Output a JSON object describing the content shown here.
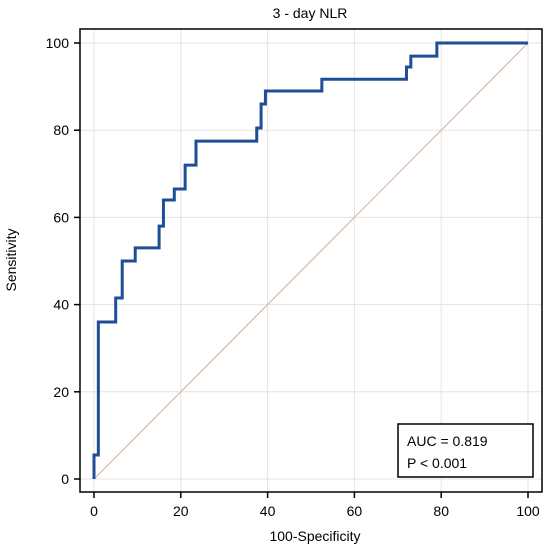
{
  "chart_data": {
    "type": "line",
    "title": "3 - day NLR",
    "xlabel": "100-Specificity",
    "ylabel": "Sensitivity",
    "xlim": [
      0,
      100
    ],
    "ylim": [
      0,
      100
    ],
    "xticks": [
      0,
      20,
      40,
      60,
      80,
      100
    ],
    "yticks": [
      0,
      20,
      40,
      60,
      80,
      100
    ],
    "grid": true,
    "series": [
      {
        "color": "#1f4e96",
        "x": [
          0,
          0,
          1,
          1,
          5,
          5,
          6.5,
          6.5,
          9.5,
          9.5,
          15,
          15,
          16,
          16,
          18.5,
          18.5,
          21,
          21,
          23.5,
          23.5,
          37.5,
          37.5,
          38.5,
          38.5,
          39.5,
          39.5,
          52.5,
          52.5,
          72,
          72,
          73,
          73,
          74,
          74,
          79,
          79,
          100
        ],
        "y": [
          0,
          5.5,
          5.5,
          36,
          36,
          41.5,
          41.5,
          50,
          50,
          53,
          53,
          58,
          58,
          64,
          64,
          66.5,
          66.5,
          72,
          72,
          77.5,
          77.5,
          80.5,
          80.5,
          86,
          86,
          89,
          89,
          91.7,
          91.7,
          94.5,
          94.5,
          97,
          97,
          97,
          97,
          100,
          100
        ]
      },
      {
        "color": "#e3b4a9",
        "x": [
          0,
          100
        ],
        "y": [
          0,
          100
        ]
      }
    ],
    "legend": {
      "position": "bottom-right",
      "lines": [
        "AUC = 0.819",
        "P < 0.001"
      ]
    }
  }
}
